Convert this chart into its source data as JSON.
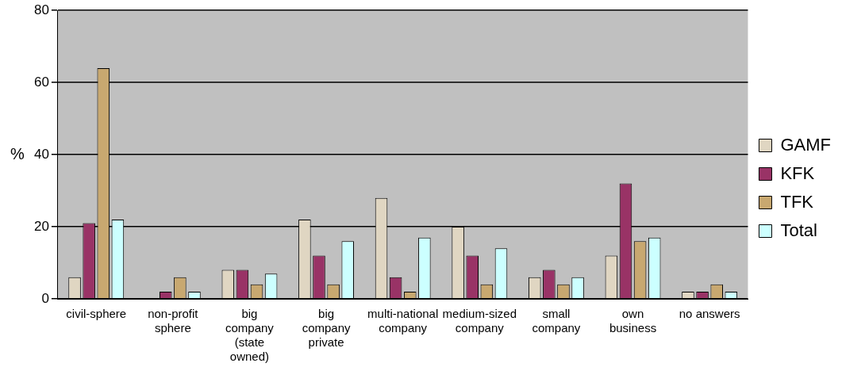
{
  "chart_data": {
    "type": "bar",
    "ylabel": "%",
    "categories": [
      "civil-sphere",
      "non-profit sphere",
      "big company (state owned)",
      "big company private",
      "multi-national company",
      "medium-sized company",
      "small company",
      "own business",
      "no answers"
    ],
    "series": [
      {
        "name": "GAMF",
        "color": "#e0d6c2",
        "values": [
          6,
          0,
          8,
          22,
          28,
          20,
          6,
          12,
          2
        ]
      },
      {
        "name": "KFK",
        "color": "#993366",
        "values": [
          21,
          2,
          8,
          12,
          6,
          12,
          8,
          32,
          2
        ]
      },
      {
        "name": "TFK",
        "color": "#c8a870",
        "values": [
          64,
          6,
          4,
          4,
          2,
          4,
          4,
          16,
          4
        ]
      },
      {
        "name": "Total",
        "color": "#ccffff",
        "values": [
          22,
          2,
          7,
          16,
          17,
          14,
          6,
          17,
          2
        ]
      }
    ],
    "ylim": [
      0,
      80
    ],
    "yticks": [
      0,
      20,
      40,
      60,
      80
    ],
    "grid": "y",
    "legend": "right"
  }
}
